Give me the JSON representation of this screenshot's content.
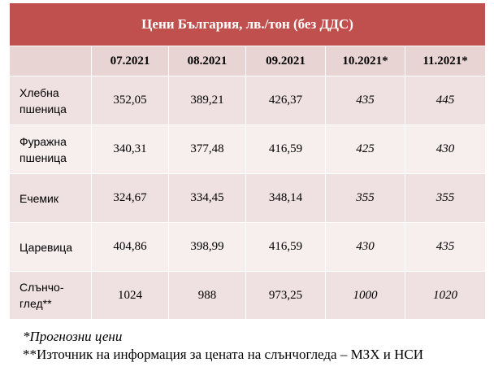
{
  "table": {
    "title": "Цени България, лв./тон (без ДДС)",
    "columns": [
      "07.2021",
      "08.2021",
      "09.2021",
      "10.2021*",
      "11.2021*"
    ],
    "rows": [
      {
        "label_line1": "Хлебна",
        "label_line2": "пшеница",
        "values": [
          "352,05",
          "389,21",
          "426,37",
          "435",
          "445"
        ]
      },
      {
        "label_line1": "Фуражна",
        "label_line2": "пшеница",
        "values": [
          "340,31",
          "377,48",
          "416,59",
          "425",
          "430"
        ]
      },
      {
        "label_line1": "Ечемик",
        "label_line2": "",
        "values": [
          "324,67",
          "334,45",
          "348,14",
          "355",
          "355"
        ]
      },
      {
        "label_line1": "Царевица",
        "label_line2": "",
        "values": [
          "404,86",
          "398,99",
          "416,59",
          "430",
          "435"
        ]
      },
      {
        "label_line1": "Слънчо-",
        "label_line2": "глед**",
        "values": [
          "1024",
          "988",
          "973,25",
          "1000",
          "1020"
        ]
      }
    ]
  },
  "notes": {
    "forecast": "*Прогнозни цени",
    "source": "**Източник на информация за цената на слънчогледа – МЗХ и НСИ"
  },
  "colors": {
    "title_bg": "#c0504d",
    "header_bg": "#e9d4d4",
    "row_alt_a": "#efe1e1",
    "row_alt_b": "#f7eeee"
  }
}
